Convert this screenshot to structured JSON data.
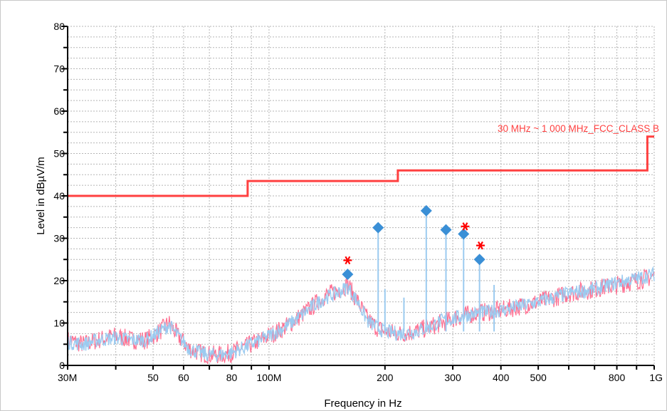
{
  "chart_data": {
    "type": "line",
    "xlabel": "Frequency in Hz",
    "ylabel": "Level in dBµV/m",
    "x_scale": "log",
    "xlim": [
      30000000,
      1000000000
    ],
    "ylim": [
      0,
      80
    ],
    "grid": true,
    "x_tick_values": [
      30000000,
      40000000,
      50000000,
      60000000,
      70000000,
      80000000,
      90000000,
      100000000,
      200000000,
      300000000,
      400000000,
      500000000,
      600000000,
      700000000,
      800000000,
      900000000,
      1000000000
    ],
    "x_tick_labels": [
      {
        "value": 30000000,
        "label": "30M"
      },
      {
        "value": 50000000,
        "label": "50"
      },
      {
        "value": 60000000,
        "label": "60"
      },
      {
        "value": 80000000,
        "label": "80"
      },
      {
        "value": 100000000,
        "label": "100M"
      },
      {
        "value": 200000000,
        "label": "200"
      },
      {
        "value": 300000000,
        "label": "300"
      },
      {
        "value": 400000000,
        "label": "400"
      },
      {
        "value": 500000000,
        "label": "500"
      },
      {
        "value": 800000000,
        "label": "800"
      },
      {
        "value": 1000000000,
        "label": "1G"
      }
    ],
    "y_ticks": [
      0,
      10,
      20,
      30,
      40,
      50,
      60,
      70,
      80
    ],
    "limit_line": {
      "label": "30 MHz ~ 1 000 MHz_FCC_CLASS B",
      "color": "#ff4040",
      "steps": [
        {
          "from": 30000000,
          "to": 88000000,
          "value": 40
        },
        {
          "from": 88000000,
          "to": 216000000,
          "value": 43.5
        },
        {
          "from": 216000000,
          "to": 960000000,
          "value": 46
        },
        {
          "from": 960000000,
          "to": 1000000000,
          "value": 54
        }
      ]
    },
    "series": [
      {
        "color": "#ff6f91",
        "style": "trace",
        "x": [
          30000000,
          33000000,
          36000000,
          40000000,
          44000000,
          48000000,
          52000000,
          55000000,
          58000000,
          62000000,
          66000000,
          70000000,
          75000000,
          80000000,
          85000000,
          90000000,
          95000000,
          100000000,
          110000000,
          120000000,
          130000000,
          140000000,
          150000000,
          160000000,
          170000000,
          180000000,
          190000000,
          200000000,
          220000000,
          240000000,
          260000000,
          280000000,
          300000000,
          330000000,
          360000000,
          400000000,
          450000000,
          500000000,
          550000000,
          600000000,
          700000000,
          800000000,
          900000000,
          1000000000
        ],
        "values": [
          6,
          5,
          6,
          7,
          6,
          6,
          8,
          10,
          7,
          4,
          3,
          2.5,
          2.5,
          3,
          4,
          5,
          6,
          7,
          9,
          11.5,
          14,
          16.5,
          17.5,
          19,
          15,
          11,
          9,
          8,
          7.5,
          8,
          9,
          10,
          11,
          12,
          12.5,
          13,
          14,
          15,
          16,
          17,
          18,
          19,
          20,
          21
        ]
      },
      {
        "color": "#9ccbf0",
        "style": "trace",
        "x": [
          30000000,
          33000000,
          36000000,
          40000000,
          44000000,
          48000000,
          52000000,
          55000000,
          58000000,
          62000000,
          66000000,
          70000000,
          75000000,
          80000000,
          85000000,
          90000000,
          95000000,
          100000000,
          110000000,
          120000000,
          130000000,
          140000000,
          150000000,
          160000000,
          170000000,
          180000000,
          190000000,
          200000000,
          220000000,
          240000000,
          260000000,
          280000000,
          300000000,
          330000000,
          360000000,
          400000000,
          450000000,
          500000000,
          550000000,
          600000000,
          700000000,
          800000000,
          900000000,
          1000000000
        ],
        "values": [
          5.5,
          5,
          6,
          6.5,
          6,
          6,
          8,
          9.5,
          7,
          4,
          3,
          2.5,
          2.5,
          3,
          4,
          5,
          6,
          7,
          9,
          11.5,
          14,
          16,
          17,
          18.5,
          15,
          10.5,
          9,
          8,
          7.5,
          8,
          9,
          10.5,
          11,
          12,
          12.5,
          13,
          14,
          15,
          16,
          17,
          18,
          19.5,
          20.5,
          21.5
        ]
      }
    ],
    "spikes": [
      {
        "x": 192000000,
        "y": 32.5
      },
      {
        "x": 200000000,
        "y": 18
      },
      {
        "x": 224000000,
        "y": 16
      },
      {
        "x": 256000000,
        "y": 36.5
      },
      {
        "x": 288000000,
        "y": 32
      },
      {
        "x": 320000000,
        "y": 31
      },
      {
        "x": 352000000,
        "y": 25
      },
      {
        "x": 384000000,
        "y": 19
      }
    ],
    "final_measurements": {
      "marker": "diamond",
      "color": "#3a8fd6",
      "points": [
        {
          "x": 160000000,
          "y": 21.5
        },
        {
          "x": 192000000,
          "y": 32.5
        },
        {
          "x": 256000000,
          "y": 36.5
        },
        {
          "x": 288000000,
          "y": 32
        },
        {
          "x": 320000000,
          "y": 31
        },
        {
          "x": 352000000,
          "y": 25
        }
      ]
    },
    "peak_markers": {
      "marker": "asterisk",
      "color": "#ff0000",
      "points": [
        {
          "x": 160000000,
          "y": 24.8
        },
        {
          "x": 323000000,
          "y": 32.8
        },
        {
          "x": 354000000,
          "y": 28.3
        }
      ]
    }
  }
}
